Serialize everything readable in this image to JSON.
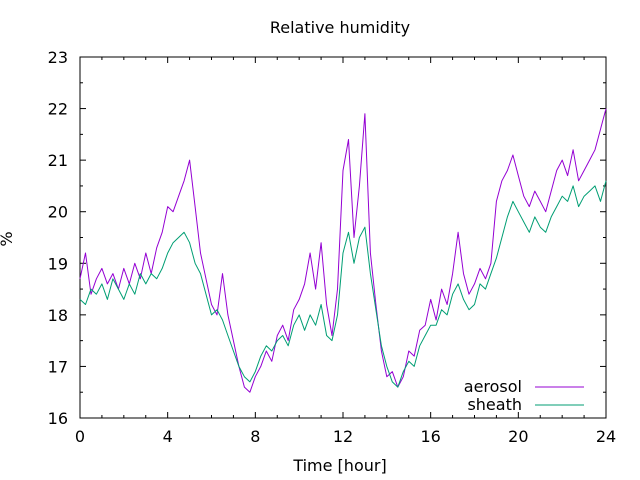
{
  "chart_data": {
    "type": "line",
    "title": "Relative humidity",
    "xlabel": "Time [hour]",
    "ylabel": "%",
    "xlim": [
      0,
      24
    ],
    "ylim": [
      16,
      23
    ],
    "xticks": [
      0,
      4,
      8,
      12,
      16,
      20,
      24
    ],
    "yticks": [
      16,
      17,
      18,
      19,
      20,
      21,
      22,
      23
    ],
    "xminor_step": 1,
    "yminor_step": 0.5,
    "grid": false,
    "legend_position": "bottom-right",
    "series": [
      {
        "name": "aerosol",
        "color": "#9400d3",
        "x": [
          0,
          0.25,
          0.5,
          0.75,
          1,
          1.25,
          1.5,
          1.75,
          2,
          2.25,
          2.5,
          2.75,
          3,
          3.25,
          3.5,
          3.75,
          4,
          4.25,
          4.5,
          4.75,
          5,
          5.25,
          5.5,
          5.75,
          6,
          6.25,
          6.5,
          6.75,
          7,
          7.25,
          7.5,
          7.75,
          8,
          8.25,
          8.5,
          8.75,
          9,
          9.25,
          9.5,
          9.75,
          10,
          10.25,
          10.5,
          10.75,
          11,
          11.25,
          11.5,
          11.75,
          12,
          12.25,
          12.5,
          12.75,
          13,
          13.25,
          13.5,
          13.75,
          14,
          14.25,
          14.5,
          14.75,
          15,
          15.25,
          15.5,
          15.75,
          16,
          16.25,
          16.5,
          16.75,
          17,
          17.25,
          17.5,
          17.75,
          18,
          18.25,
          18.5,
          18.75,
          19,
          19.25,
          19.5,
          19.75,
          20,
          20.25,
          20.5,
          20.75,
          21,
          21.25,
          21.5,
          21.75,
          22,
          22.25,
          22.5,
          22.75,
          23,
          23.25,
          23.5,
          23.75,
          24
        ],
        "values": [
          18.7,
          19.2,
          18.4,
          18.7,
          18.9,
          18.6,
          18.8,
          18.5,
          18.9,
          18.6,
          19.0,
          18.7,
          19.2,
          18.8,
          19.3,
          19.6,
          20.1,
          20.0,
          20.3,
          20.6,
          21.0,
          20.1,
          19.2,
          18.7,
          18.2,
          18.0,
          18.8,
          18.0,
          17.5,
          17.0,
          16.6,
          16.5,
          16.8,
          17.0,
          17.3,
          17.1,
          17.6,
          17.8,
          17.5,
          18.1,
          18.3,
          18.6,
          19.2,
          18.5,
          19.4,
          18.2,
          17.6,
          18.5,
          20.8,
          21.4,
          19.5,
          20.5,
          21.9,
          19.2,
          18.2,
          17.3,
          16.8,
          16.9,
          16.6,
          16.8,
          17.3,
          17.2,
          17.7,
          17.8,
          18.3,
          17.9,
          18.5,
          18.2,
          18.8,
          19.6,
          18.8,
          18.4,
          18.6,
          18.9,
          18.7,
          19.0,
          20.2,
          20.6,
          20.8,
          21.1,
          20.7,
          20.3,
          20.1,
          20.4,
          20.2,
          20.0,
          20.4,
          20.8,
          21.0,
          20.7,
          21.2,
          20.6,
          20.8,
          21.0,
          21.2,
          21.6,
          22.0
        ],
        "color_name": "purple"
      },
      {
        "name": "sheath",
        "color": "#009e73",
        "x": [
          0,
          0.25,
          0.5,
          0.75,
          1,
          1.25,
          1.5,
          1.75,
          2,
          2.25,
          2.5,
          2.75,
          3,
          3.25,
          3.5,
          3.75,
          4,
          4.25,
          4.5,
          4.75,
          5,
          5.25,
          5.5,
          5.75,
          6,
          6.25,
          6.5,
          6.75,
          7,
          7.25,
          7.5,
          7.75,
          8,
          8.25,
          8.5,
          8.75,
          9,
          9.25,
          9.5,
          9.75,
          10,
          10.25,
          10.5,
          10.75,
          11,
          11.25,
          11.5,
          11.75,
          12,
          12.25,
          12.5,
          12.75,
          13,
          13.25,
          13.5,
          13.75,
          14,
          14.25,
          14.5,
          14.75,
          15,
          15.25,
          15.5,
          15.75,
          16,
          16.25,
          16.5,
          16.75,
          17,
          17.25,
          17.5,
          17.75,
          18,
          18.25,
          18.5,
          18.75,
          19,
          19.25,
          19.5,
          19.75,
          20,
          20.25,
          20.5,
          20.75,
          21,
          21.25,
          21.5,
          21.75,
          22,
          22.25,
          22.5,
          22.75,
          23,
          23.25,
          23.5,
          23.75,
          24
        ],
        "values": [
          18.3,
          18.2,
          18.5,
          18.4,
          18.6,
          18.3,
          18.7,
          18.5,
          18.3,
          18.6,
          18.4,
          18.8,
          18.6,
          18.8,
          18.7,
          18.9,
          19.2,
          19.4,
          19.5,
          19.6,
          19.4,
          19.0,
          18.8,
          18.4,
          18.0,
          18.1,
          17.9,
          17.6,
          17.3,
          17.0,
          16.8,
          16.7,
          16.9,
          17.2,
          17.4,
          17.3,
          17.5,
          17.6,
          17.4,
          17.8,
          18.0,
          17.7,
          18.0,
          17.8,
          18.2,
          17.6,
          17.5,
          18.0,
          19.2,
          19.6,
          19.0,
          19.5,
          19.7,
          18.8,
          18.1,
          17.4,
          17.0,
          16.7,
          16.6,
          16.9,
          17.1,
          17.0,
          17.4,
          17.6,
          17.8,
          17.8,
          18.1,
          18.0,
          18.4,
          18.6,
          18.3,
          18.1,
          18.2,
          18.6,
          18.5,
          18.8,
          19.1,
          19.5,
          19.9,
          20.2,
          20.0,
          19.8,
          19.6,
          19.9,
          19.7,
          19.6,
          19.9,
          20.1,
          20.3,
          20.2,
          20.5,
          20.1,
          20.3,
          20.4,
          20.5,
          20.2,
          20.6
        ],
        "color_name": "green"
      }
    ]
  }
}
